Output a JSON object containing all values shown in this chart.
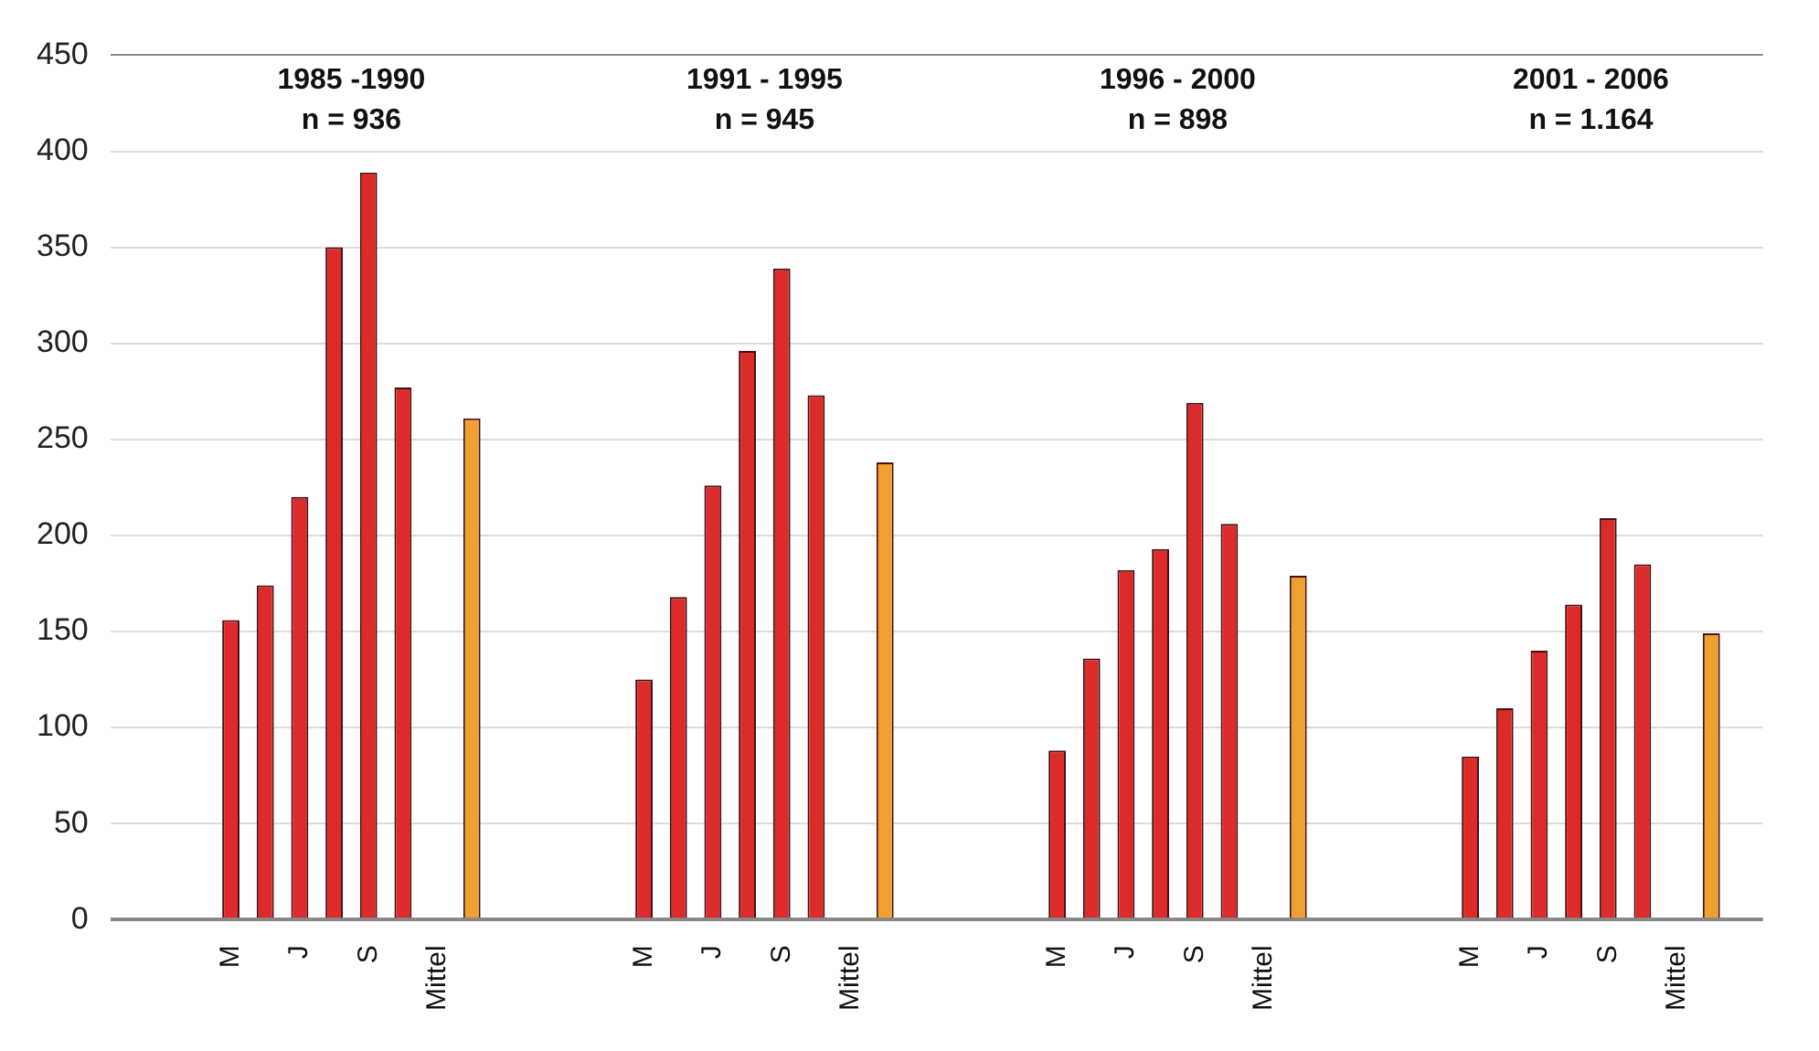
{
  "chart_data": {
    "type": "bar",
    "categories": [
      null,
      null,
      null,
      "M",
      null,
      "J",
      null,
      "S",
      null,
      "Mittel",
      null,
      null,
      null,
      null,
      null,
      "M",
      null,
      "J",
      null,
      "S",
      null,
      "Mittel",
      null,
      null,
      null,
      null,
      null,
      "M",
      null,
      "J",
      null,
      "S",
      null,
      "Mittel",
      null,
      null,
      null,
      null,
      null,
      "M",
      null,
      "J",
      null,
      "S",
      null,
      "Mittel",
      null,
      null
    ],
    "values": [
      null,
      null,
      null,
      156,
      174,
      220,
      350,
      389,
      277,
      null,
      261,
      null,
      null,
      null,
      null,
      125,
      168,
      226,
      296,
      339,
      273,
      null,
      238,
      null,
      null,
      null,
      null,
      88,
      136,
      182,
      193,
      269,
      206,
      null,
      179,
      null,
      null,
      null,
      null,
      85,
      110,
      140,
      164,
      209,
      185,
      null,
      149,
      null
    ],
    "colors": [
      "#dd2a2a",
      "#dd2a2a",
      "#dd2a2a",
      "#dd2a2a",
      "#dd2a2a",
      "#dd2a2a",
      "#dd2a2a",
      "#dd2a2a",
      "#dd2a2a",
      "#dd2a2a",
      "#f0a030",
      "#dd2a2a",
      "#dd2a2a",
      "#dd2a2a",
      "#dd2a2a",
      "#dd2a2a",
      "#dd2a2a",
      "#dd2a2a",
      "#dd2a2a",
      "#dd2a2a",
      "#dd2a2a",
      "#dd2a2a",
      "#f0a030",
      "#dd2a2a",
      "#dd2a2a",
      "#dd2a2a",
      "#dd2a2a",
      "#dd2a2a",
      "#dd2a2a",
      "#dd2a2a",
      "#dd2a2a",
      "#dd2a2a",
      "#dd2a2a",
      "#dd2a2a",
      "#f0a030",
      "#dd2a2a",
      "#dd2a2a",
      "#dd2a2a",
      "#dd2a2a",
      "#dd2a2a",
      "#dd2a2a",
      "#dd2a2a",
      "#dd2a2a",
      "#dd2a2a",
      "#dd2a2a",
      "#dd2a2a",
      "#f0a030",
      "#dd2a2a"
    ],
    "ylim": [
      0,
      450
    ],
    "yticks": [
      0,
      50,
      100,
      150,
      200,
      250,
      300,
      350,
      400,
      450
    ],
    "grid": "y",
    "annotations": [
      "1985 -1990\nn = 936",
      "1991 - 1995\nn = 945",
      "1996 - 2000\nn = 898",
      "2001 - 2006\nn = 1.164"
    ]
  }
}
